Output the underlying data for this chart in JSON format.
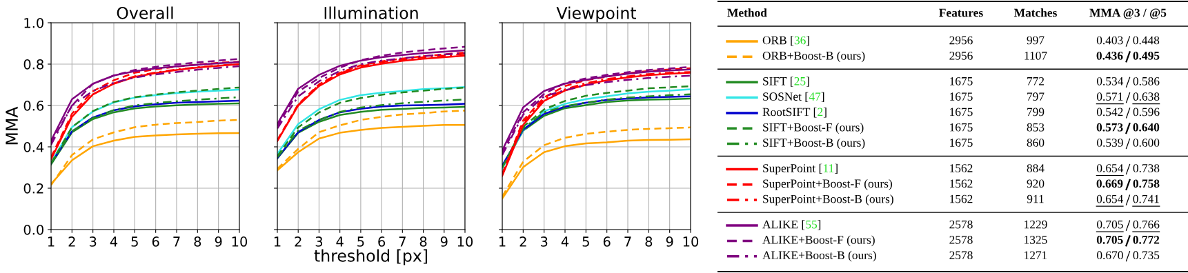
{
  "chart_data": [
    {
      "type": "line",
      "title": "Overall",
      "ylabel": "MMA",
      "x": [
        1,
        2,
        3,
        4,
        5,
        6,
        7,
        8,
        9,
        10
      ],
      "xlim": [
        1,
        10
      ],
      "ylim": [
        0,
        1
      ],
      "xticks": [
        1,
        2,
        3,
        4,
        5,
        6,
        7,
        8,
        9,
        10
      ],
      "yticks": [
        {
          "value": 0,
          "label": "0.0"
        },
        {
          "value": 0.2,
          "label": "0.2"
        },
        {
          "value": 0.4,
          "label": "0.4"
        },
        {
          "value": 0.6,
          "label": "0.6"
        },
        {
          "value": 0.8,
          "label": "0.8"
        },
        {
          "value": 1,
          "label": "1.0"
        }
      ],
      "grid": true,
      "marker": "none",
      "series": [
        {
          "color": "#ffa500",
          "line_style": "solid",
          "values": [
            0.22,
            0.335,
            0.403,
            0.43,
            0.448,
            0.455,
            0.46,
            0.463,
            0.466,
            0.467
          ]
        },
        {
          "color": "#ffa500",
          "line_style": "dashed",
          "values": [
            0.215,
            0.36,
            0.436,
            0.47,
            0.495,
            0.507,
            0.515,
            0.52,
            0.527,
            0.53
          ]
        },
        {
          "color": "#228b22",
          "line_style": "solid",
          "values": [
            0.315,
            0.47,
            0.534,
            0.567,
            0.586,
            0.595,
            0.601,
            0.605,
            0.608,
            0.61
          ]
        },
        {
          "color": "#33e6e6",
          "line_style": "solid",
          "values": [
            0.325,
            0.495,
            0.571,
            0.615,
            0.638,
            0.65,
            0.66,
            0.667,
            0.672,
            0.677
          ]
        },
        {
          "color": "#0000cd",
          "line_style": "solid",
          "values": [
            0.32,
            0.475,
            0.542,
            0.577,
            0.596,
            0.606,
            0.613,
            0.617,
            0.62,
            0.623
          ]
        },
        {
          "color": "#228b22",
          "line_style": "dashed",
          "values": [
            0.32,
            0.495,
            0.573,
            0.617,
            0.64,
            0.653,
            0.664,
            0.672,
            0.68,
            0.687
          ]
        },
        {
          "color": "#228b22",
          "line_style": "dashdot",
          "values": [
            0.32,
            0.475,
            0.539,
            0.578,
            0.6,
            0.612,
            0.62,
            0.628,
            0.634,
            0.64
          ]
        },
        {
          "color": "#ff0000",
          "line_style": "solid",
          "values": [
            0.34,
            0.545,
            0.654,
            0.705,
            0.738,
            0.757,
            0.772,
            0.783,
            0.792,
            0.8
          ]
        },
        {
          "color": "#ff0000",
          "line_style": "dashed",
          "values": [
            0.35,
            0.56,
            0.669,
            0.722,
            0.758,
            0.775,
            0.788,
            0.798,
            0.806,
            0.812
          ]
        },
        {
          "color": "#ff0000",
          "line_style": "dashdot",
          "values": [
            0.345,
            0.55,
            0.654,
            0.707,
            0.741,
            0.76,
            0.774,
            0.785,
            0.794,
            0.8
          ]
        },
        {
          "color": "#800080",
          "line_style": "solid",
          "values": [
            0.43,
            0.63,
            0.705,
            0.745,
            0.766,
            0.779,
            0.789,
            0.797,
            0.804,
            0.81
          ]
        },
        {
          "color": "#800080",
          "line_style": "dashed",
          "values": [
            0.42,
            0.6,
            0.705,
            0.745,
            0.772,
            0.787,
            0.799,
            0.808,
            0.817,
            0.825
          ]
        },
        {
          "color": "#800080",
          "line_style": "dashdot",
          "values": [
            0.41,
            0.6,
            0.67,
            0.71,
            0.735,
            0.75,
            0.762,
            0.773,
            0.782,
            0.79
          ]
        }
      ]
    },
    {
      "type": "line",
      "title": "Illumination",
      "xlabel": "threshold [px]",
      "tick_labels": "x",
      "x": [
        1,
        2,
        3,
        4,
        5,
        6,
        7,
        8,
        9,
        10
      ],
      "xlim": [
        1,
        10
      ],
      "ylim": [
        0,
        1
      ],
      "xticks": [
        1,
        2,
        3,
        4,
        5,
        6,
        7,
        8,
        9,
        10
      ],
      "yticks": [
        {
          "value": 0,
          "label": null
        },
        {
          "value": 0.2,
          "label": null
        },
        {
          "value": 0.4,
          "label": null
        },
        {
          "value": 0.6,
          "label": null
        },
        {
          "value": 0.8,
          "label": null
        },
        {
          "value": 1,
          "label": null
        }
      ],
      "grid": true,
      "marker": "none",
      "series": [
        {
          "color": "#ffa500",
          "line_style": "solid",
          "values": [
            0.286,
            0.374,
            0.44,
            0.468,
            0.482,
            0.492,
            0.497,
            0.502,
            0.506,
            0.506
          ]
        },
        {
          "color": "#ffa500",
          "line_style": "dashed",
          "values": [
            0.294,
            0.39,
            0.471,
            0.504,
            0.53,
            0.545,
            0.557,
            0.563,
            0.571,
            0.575
          ]
        },
        {
          "color": "#228b22",
          "line_style": "solid",
          "values": [
            0.344,
            0.468,
            0.521,
            0.554,
            0.569,
            0.579,
            0.583,
            0.588,
            0.59,
            0.593
          ]
        },
        {
          "color": "#33e6e6",
          "line_style": "solid",
          "values": [
            0.366,
            0.51,
            0.582,
            0.627,
            0.65,
            0.662,
            0.67,
            0.679,
            0.683,
            0.689
          ]
        },
        {
          "color": "#0000cd",
          "line_style": "solid",
          "values": [
            0.346,
            0.471,
            0.53,
            0.567,
            0.584,
            0.595,
            0.6,
            0.602,
            0.604,
            0.608
          ]
        },
        {
          "color": "#228b22",
          "line_style": "dashed",
          "values": [
            0.355,
            0.494,
            0.566,
            0.613,
            0.636,
            0.652,
            0.663,
            0.672,
            0.68,
            0.686
          ]
        },
        {
          "color": "#228b22",
          "line_style": "dashdot",
          "values": [
            0.35,
            0.478,
            0.53,
            0.569,
            0.59,
            0.602,
            0.611,
            0.618,
            0.624,
            0.629
          ]
        },
        {
          "color": "#ff0000",
          "line_style": "solid",
          "values": [
            0.428,
            0.6,
            0.694,
            0.75,
            0.783,
            0.802,
            0.816,
            0.826,
            0.833,
            0.841
          ]
        },
        {
          "color": "#ff0000",
          "line_style": "dashed",
          "values": [
            0.433,
            0.606,
            0.702,
            0.758,
            0.794,
            0.813,
            0.827,
            0.838,
            0.847,
            0.856
          ]
        },
        {
          "color": "#ff0000",
          "line_style": "dashdot",
          "values": [
            0.43,
            0.602,
            0.7,
            0.756,
            0.789,
            0.809,
            0.822,
            0.833,
            0.841,
            0.849
          ]
        },
        {
          "color": "#800080",
          "line_style": "solid",
          "values": [
            0.511,
            0.681,
            0.748,
            0.792,
            0.817,
            0.833,
            0.844,
            0.853,
            0.86,
            0.867
          ]
        },
        {
          "color": "#800080",
          "line_style": "dashed",
          "values": [
            0.5,
            0.667,
            0.733,
            0.783,
            0.819,
            0.841,
            0.856,
            0.867,
            0.876,
            0.884
          ]
        },
        {
          "color": "#800080",
          "line_style": "dashdot",
          "values": [
            0.489,
            0.644,
            0.717,
            0.767,
            0.8,
            0.817,
            0.828,
            0.839,
            0.847,
            0.853
          ]
        }
      ]
    },
    {
      "type": "line",
      "title": "Viewpoint",
      "tick_labels": "x",
      "x": [
        1,
        2,
        3,
        4,
        5,
        6,
        7,
        8,
        9,
        10
      ],
      "xlim": [
        1,
        10
      ],
      "ylim": [
        0,
        1
      ],
      "xticks": [
        1,
        2,
        3,
        4,
        5,
        6,
        7,
        8,
        9,
        10
      ],
      "yticks": [
        {
          "value": 0,
          "label": null
        },
        {
          "value": 0.2,
          "label": null
        },
        {
          "value": 0.4,
          "label": null
        },
        {
          "value": 0.6,
          "label": null
        },
        {
          "value": 0.8,
          "label": null
        },
        {
          "value": 1,
          "label": null
        }
      ],
      "grid": true,
      "marker": "none",
      "series": [
        {
          "color": "#ffa500",
          "line_style": "solid",
          "values": [
            0.15,
            0.302,
            0.374,
            0.403,
            0.417,
            0.422,
            0.43,
            0.433,
            0.434,
            0.437
          ]
        },
        {
          "color": "#ffa500",
          "line_style": "dashed",
          "values": [
            0.16,
            0.328,
            0.408,
            0.444,
            0.463,
            0.473,
            0.482,
            0.487,
            0.49,
            0.494
          ]
        },
        {
          "color": "#228b22",
          "line_style": "solid",
          "values": [
            0.3,
            0.478,
            0.55,
            0.587,
            0.602,
            0.617,
            0.624,
            0.628,
            0.63,
            0.633
          ]
        },
        {
          "color": "#33e6e6",
          "line_style": "solid",
          "values": [
            0.295,
            0.48,
            0.572,
            0.608,
            0.631,
            0.644,
            0.658,
            0.667,
            0.672,
            0.678
          ]
        },
        {
          "color": "#0000cd",
          "line_style": "solid",
          "values": [
            0.31,
            0.483,
            0.559,
            0.594,
            0.613,
            0.627,
            0.633,
            0.639,
            0.642,
            0.644
          ]
        },
        {
          "color": "#228b22",
          "line_style": "dashed",
          "values": [
            0.3,
            0.497,
            0.581,
            0.622,
            0.647,
            0.661,
            0.672,
            0.683,
            0.688,
            0.693
          ]
        },
        {
          "color": "#228b22",
          "line_style": "dashdot",
          "values": [
            0.3,
            0.489,
            0.567,
            0.597,
            0.614,
            0.628,
            0.638,
            0.644,
            0.65,
            0.654
          ]
        },
        {
          "color": "#ff0000",
          "line_style": "solid",
          "values": [
            0.26,
            0.506,
            0.622,
            0.672,
            0.7,
            0.722,
            0.736,
            0.747,
            0.753,
            0.758
          ]
        },
        {
          "color": "#ff0000",
          "line_style": "dashed",
          "values": [
            0.27,
            0.528,
            0.639,
            0.694,
            0.722,
            0.739,
            0.756,
            0.767,
            0.774,
            0.78
          ]
        },
        {
          "color": "#ff0000",
          "line_style": "dashdot",
          "values": [
            0.265,
            0.517,
            0.631,
            0.678,
            0.708,
            0.728,
            0.741,
            0.752,
            0.758,
            0.762
          ]
        },
        {
          "color": "#800080",
          "line_style": "solid",
          "values": [
            0.383,
            0.591,
            0.67,
            0.706,
            0.724,
            0.741,
            0.753,
            0.763,
            0.769,
            0.774
          ]
        },
        {
          "color": "#800080",
          "line_style": "dashed",
          "values": [
            0.37,
            0.567,
            0.656,
            0.709,
            0.731,
            0.748,
            0.761,
            0.772,
            0.779,
            0.786
          ]
        },
        {
          "color": "#800080",
          "line_style": "dashdot",
          "values": [
            0.36,
            0.556,
            0.644,
            0.674,
            0.698,
            0.713,
            0.724,
            0.733,
            0.739,
            0.744
          ]
        }
      ]
    },
    {
      "type": "other",
      "legend_title": "Method",
      "data_labels": true,
      "categories": [
        "ORB [36]",
        "ORB+Boost-B (ours)",
        "SIFT [25]",
        "SOSNet [47]",
        "RootSIFT [2]",
        "SIFT+Boost-F (ours)",
        "SIFT+Boost-B (ours)",
        "SuperPoint [11]",
        "SuperPoint+Boost-F (ours)",
        "SuperPoint+Boost-B (ours)",
        "ALIKE [55]",
        "ALIKE+Boost-F (ours)",
        "ALIKE+Boost-B (ours)"
      ],
      "colors": [
        "#ffa500",
        "#ffa500",
        "#228b22",
        "#33e6e6",
        "#0000cd",
        "#228b22",
        "#228b22",
        "#ff0000",
        "#ff0000",
        "#ff0000",
        "#800080",
        "#800080",
        "#800080"
      ],
      "series": [
        {
          "name": "Features",
          "values": [
            2956,
            2956,
            1675,
            1675,
            1675,
            1675,
            1675,
            1562,
            1562,
            1562,
            2578,
            2578,
            2578
          ]
        },
        {
          "name": "Matches",
          "values": [
            997,
            1107,
            772,
            797,
            799,
            853,
            860,
            884,
            920,
            911,
            1229,
            1325,
            1271
          ]
        },
        {
          "name": "MMA @3 / @5",
          "values": [
            0.403,
            0.436,
            0.534,
            0.571,
            0.542,
            0.573,
            0.539,
            0.654,
            0.669,
            0.654,
            0.705,
            0.705,
            0.67
          ],
          "value_labels": [
            "0.403",
            "0.436",
            "0.534",
            "0.571",
            "0.542",
            "0.573",
            "0.539",
            "0.654",
            "0.669",
            "0.654",
            "0.705",
            "0.705",
            "0.670"
          ]
        },
        {
          "values": [
            0.448,
            0.495,
            0.586,
            0.638,
            0.596,
            0.64,
            0.6,
            0.738,
            0.758,
            0.741,
            0.766,
            0.772,
            0.735
          ],
          "value_labels": [
            "0.448",
            "0.495",
            "0.586",
            "0.638",
            "0.596",
            "0.640",
            "0.600",
            "0.738",
            "0.758",
            "0.741",
            "0.766",
            "0.772",
            "0.735"
          ]
        }
      ]
    }
  ]
}
